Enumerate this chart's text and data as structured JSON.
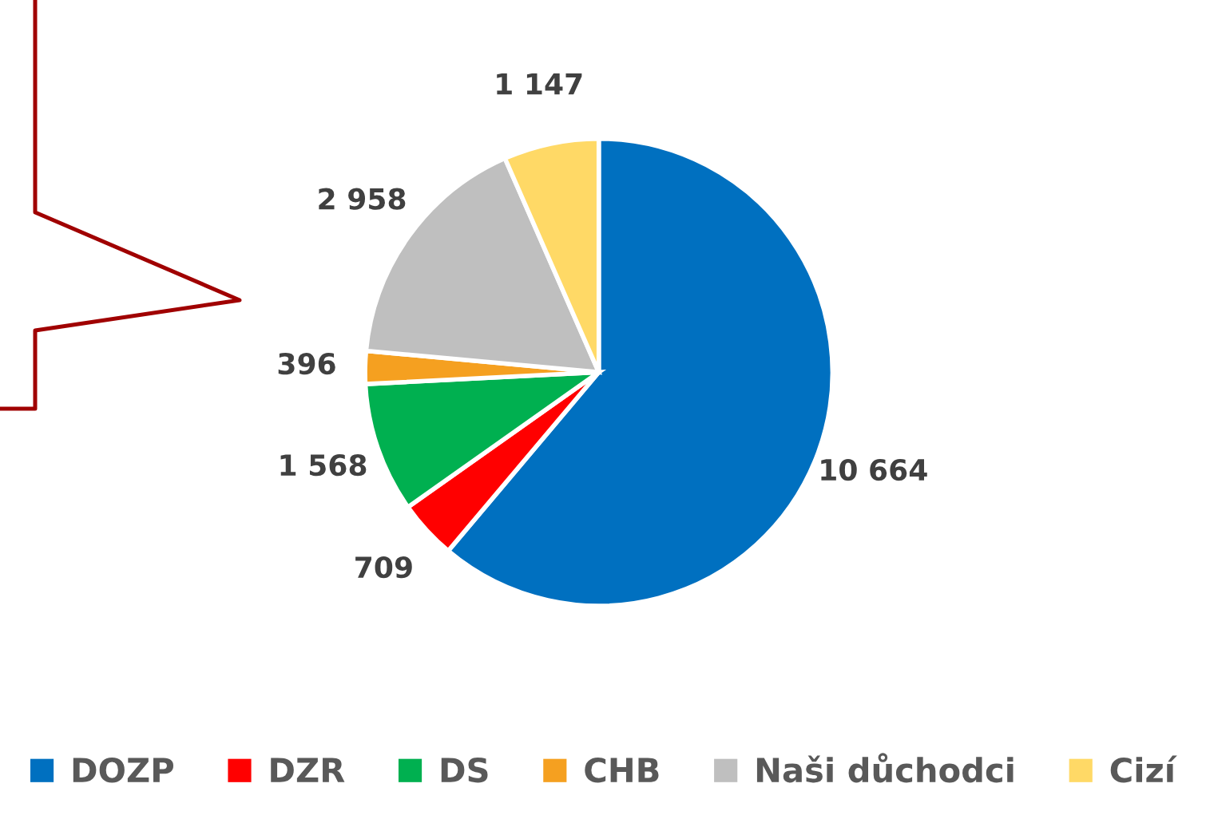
{
  "chart_data": {
    "type": "pie",
    "categories": [
      "DOZP",
      "DZR",
      "DS",
      "CHB",
      "Naši důchodci",
      "Cizí"
    ],
    "values": [
      10664,
      709,
      1568,
      396,
      2958,
      1147
    ],
    "colors": [
      "#0070c0",
      "#ff0000",
      "#00b050",
      "#f5a020",
      "#bfbfbf",
      "#ffd966"
    ],
    "value_labels": [
      "10 664",
      "709",
      "1 568",
      "396",
      "2 958",
      "1 147"
    ],
    "legend": "bottom"
  }
}
